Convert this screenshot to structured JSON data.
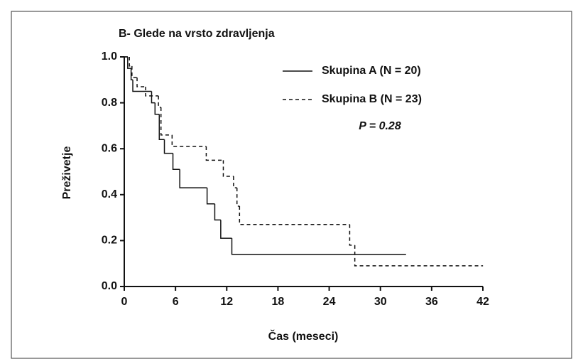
{
  "chart_data": {
    "type": "step",
    "title": "B- Glede na vrsto zdravljenja",
    "xlabel": "Čas (meseci)",
    "ylabel": "Preživetje",
    "annotation": "P = 0.28",
    "xlim": [
      0,
      42
    ],
    "xticks": [
      0,
      6,
      12,
      18,
      24,
      30,
      36,
      42
    ],
    "ylim": [
      0,
      1
    ],
    "yticks": [
      {
        "value": 0,
        "label": "0.0"
      },
      {
        "value": 0.2,
        "label": "0.2"
      },
      {
        "value": 0.4,
        "label": "0.4"
      },
      {
        "value": 0.6,
        "label": "0.6"
      },
      {
        "value": 0.8,
        "label": "0.8"
      },
      {
        "value": 1,
        "label": "1.0"
      }
    ],
    "series": [
      {
        "name": "Skupina A (N = 20)",
        "color": "#111111",
        "dash": "solid",
        "x": [
          0,
          0.4,
          0.8,
          1.0,
          3.2,
          3.6,
          4.1,
          4.7,
          5.7,
          6.5,
          9.7,
          10.6,
          11.3,
          12.6,
          33
        ],
        "values": [
          1.0,
          0.95,
          0.9,
          0.85,
          0.8,
          0.75,
          0.64,
          0.58,
          0.51,
          0.43,
          0.36,
          0.29,
          0.21,
          0.14,
          0.14
        ]
      },
      {
        "name": "Skupina B (N = 23)",
        "color": "#111111",
        "dash": "dashed",
        "x": [
          0,
          0.6,
          0.9,
          1.5,
          2.5,
          4.0,
          4.3,
          5.6,
          9.6,
          11.6,
          12.8,
          13.2,
          13.5,
          26.4,
          27.0,
          42
        ],
        "values": [
          1.0,
          0.96,
          0.91,
          0.87,
          0.83,
          0.78,
          0.66,
          0.61,
          0.55,
          0.48,
          0.43,
          0.35,
          0.27,
          0.18,
          0.09,
          0.09
        ]
      }
    ]
  }
}
